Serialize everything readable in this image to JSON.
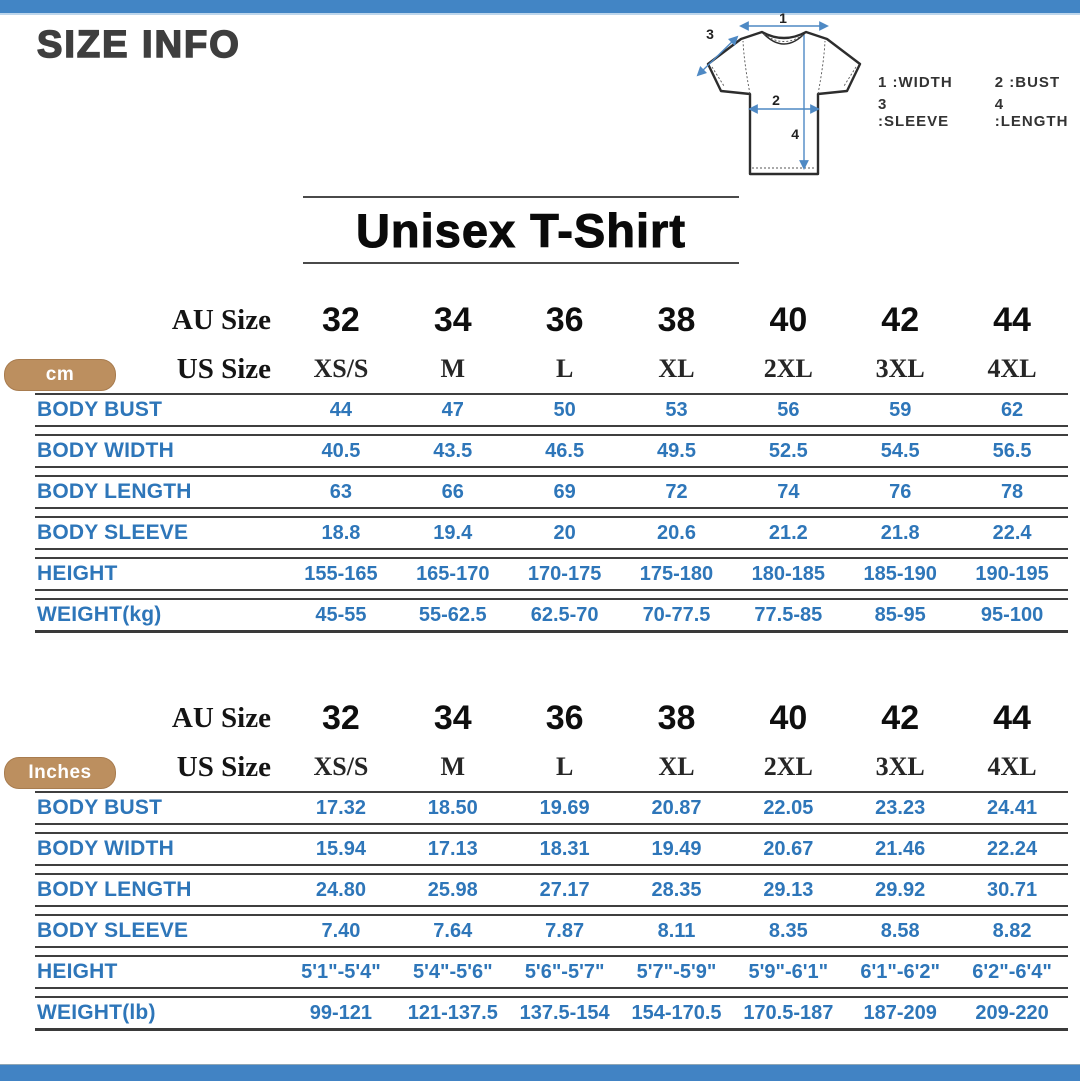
{
  "page": {
    "title": "SIZE INFO",
    "product_title": "Unisex T-Shirt"
  },
  "colors": {
    "bar_blue": "#4285c5",
    "table_text_blue": "#2e76b9",
    "badge_tan": "#bc8f5f",
    "arrow_blue": "#4e89c4"
  },
  "diagram": {
    "markers": [
      "1",
      "2",
      "3",
      "4"
    ],
    "legend": [
      "1 :WIDTH",
      "2 :BUST",
      "3 :SLEEVE",
      "4 :LENGTH"
    ]
  },
  "tables": [
    {
      "unit_badge": "cm",
      "au_label": "AU Size",
      "us_label": "US Size",
      "au_sizes": [
        "32",
        "34",
        "36",
        "38",
        "40",
        "42",
        "44"
      ],
      "us_sizes": [
        "XS/S",
        "M",
        "L",
        "XL",
        "2XL",
        "3XL",
        "4XL"
      ],
      "rows": [
        {
          "label": "BODY BUST",
          "values": [
            "44",
            "47",
            "50",
            "53",
            "56",
            "59",
            "62"
          ]
        },
        {
          "label": "BODY WIDTH",
          "values": [
            "40.5",
            "43.5",
            "46.5",
            "49.5",
            "52.5",
            "54.5",
            "56.5"
          ]
        },
        {
          "label": "BODY LENGTH",
          "values": [
            "63",
            "66",
            "69",
            "72",
            "74",
            "76",
            "78"
          ]
        },
        {
          "label": "BODY SLEEVE",
          "values": [
            "18.8",
            "19.4",
            "20",
            "20.6",
            "21.2",
            "21.8",
            "22.4"
          ]
        },
        {
          "label": "HEIGHT",
          "values": [
            "155-165",
            "165-170",
            "170-175",
            "175-180",
            "180-185",
            "185-190",
            "190-195"
          ]
        },
        {
          "label": "WEIGHT(kg)",
          "values": [
            "45-55",
            "55-62.5",
            "62.5-70",
            "70-77.5",
            "77.5-85",
            "85-95",
            "95-100"
          ]
        }
      ]
    },
    {
      "unit_badge": "Inches",
      "au_label": "AU Size",
      "us_label": "US Size",
      "au_sizes": [
        "32",
        "34",
        "36",
        "38",
        "40",
        "42",
        "44"
      ],
      "us_sizes": [
        "XS/S",
        "M",
        "L",
        "XL",
        "2XL",
        "3XL",
        "4XL"
      ],
      "rows": [
        {
          "label": "BODY BUST",
          "values": [
            "17.32",
            "18.50",
            "19.69",
            "20.87",
            "22.05",
            "23.23",
            "24.41"
          ]
        },
        {
          "label": "BODY WIDTH",
          "values": [
            "15.94",
            "17.13",
            "18.31",
            "19.49",
            "20.67",
            "21.46",
            "22.24"
          ]
        },
        {
          "label": "BODY LENGTH",
          "values": [
            "24.80",
            "25.98",
            "27.17",
            "28.35",
            "29.13",
            "29.92",
            "30.71"
          ]
        },
        {
          "label": "BODY SLEEVE",
          "values": [
            "7.40",
            "7.64",
            "7.87",
            "8.11",
            "8.35",
            "8.58",
            "8.82"
          ]
        },
        {
          "label": "HEIGHT",
          "values": [
            "5'1\"-5'4\"",
            "5'4\"-5'6\"",
            "5'6\"-5'7\"",
            "5'7\"-5'9\"",
            "5'9\"-6'1\"",
            "6'1\"-6'2\"",
            "6'2\"-6'4\""
          ]
        },
        {
          "label": "WEIGHT(lb)",
          "values": [
            "99-121",
            "121-137.5",
            "137.5-154",
            "154-170.5",
            "170.5-187",
            "187-209",
            "209-220"
          ]
        }
      ]
    }
  ]
}
